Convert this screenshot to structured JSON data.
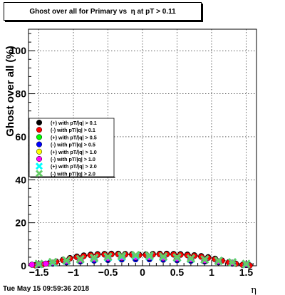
{
  "chart_data": {
    "type": "scatter",
    "title": "Ghost over all for Primary vs  η at pT > 0.11",
    "xlabel": "η",
    "ylabel": "Ghost over all (%)",
    "xlim": [
      -1.65,
      1.65
    ],
    "ylim": [
      0,
      110
    ],
    "x_ticks": [
      -1.5,
      -1,
      -0.5,
      0,
      0.5,
      1,
      1.5
    ],
    "x_tick_labels": [
      "−1.5",
      "−1",
      "−0.5",
      "0",
      "0.5",
      "1",
      "1.5"
    ],
    "y_ticks": [
      0,
      20,
      40,
      60,
      80,
      100
    ],
    "y_tick_labels": [
      "0",
      "20",
      "40",
      "60",
      "80",
      "100"
    ],
    "grid": true,
    "legend_position": "middle-left",
    "series": [
      {
        "name": "(+) with pT/|q| > 0.1",
        "color": "#000000",
        "marker": "circle",
        "x": [
          -1.55,
          -1.45,
          -1.35,
          -1.25,
          -1.15,
          -1.05,
          -0.95,
          -0.85,
          -0.75,
          -0.65,
          -0.55,
          -0.45,
          -0.35,
          -0.25,
          -0.15,
          -0.05,
          0.05,
          0.15,
          0.25,
          0.35,
          0.45,
          0.55,
          0.65,
          0.75,
          0.85,
          0.95,
          1.05,
          1.15,
          1.25,
          1.35,
          1.45,
          1.55
        ],
        "values": [
          0.3,
          0.6,
          1.2,
          2.0,
          2.8,
          3.6,
          4.3,
          4.8,
          5.2,
          5.4,
          5.5,
          5.6,
          5.6,
          5.5,
          5.4,
          5.2,
          5.3,
          5.5,
          5.6,
          5.6,
          5.5,
          5.4,
          5.2,
          4.9,
          4.5,
          4.0,
          3.3,
          2.5,
          1.7,
          1.0,
          0.5,
          0.2
        ]
      },
      {
        "name": "(-) with pT/|q| > 0.1",
        "color": "#ff0000",
        "marker": "circle",
        "x": [
          -1.55,
          -1.45,
          -1.35,
          -1.25,
          -1.15,
          -1.05,
          -0.95,
          -0.85,
          -0.75,
          -0.65,
          -0.55,
          -0.45,
          -0.35,
          -0.25,
          -0.15,
          -0.05,
          0.05,
          0.15,
          0.25,
          0.35,
          0.45,
          0.55,
          0.65,
          0.75,
          0.85,
          0.95,
          1.05,
          1.15,
          1.25,
          1.35,
          1.45,
          1.55
        ],
        "values": [
          0.2,
          0.5,
          1.0,
          1.8,
          2.6,
          3.4,
          4.0,
          4.5,
          4.9,
          5.1,
          5.2,
          5.3,
          5.3,
          5.2,
          5.1,
          4.9,
          5.0,
          5.2,
          5.3,
          5.3,
          5.2,
          5.1,
          4.9,
          4.6,
          4.2,
          3.7,
          3.0,
          2.3,
          1.5,
          0.9,
          0.4,
          0.1
        ]
      },
      {
        "name": "(+) with pT/|q| > 0.5",
        "color": "#00ff00",
        "marker": "circle",
        "x": [
          -1.5,
          -1.3,
          -1.1,
          -0.9,
          -0.7,
          -0.5,
          -0.3,
          -0.1,
          0.1,
          0.3,
          0.5,
          0.7,
          0.9,
          1.1,
          1.3,
          1.5
        ],
        "values": [
          0.5,
          1.2,
          1.8,
          2.2,
          2.6,
          2.9,
          3.1,
          3.3,
          3.2,
          3.0,
          2.8,
          2.5,
          2.2,
          1.8,
          1.2,
          0.5
        ]
      },
      {
        "name": "(-) with pT/|q| > 0.5",
        "color": "#0000ff",
        "marker": "circle",
        "x": [
          -1.5,
          -1.3,
          -1.1,
          -0.9,
          -0.7,
          -0.5,
          -0.3,
          -0.1,
          0.1,
          0.3,
          0.5,
          0.7,
          0.9,
          1.1,
          1.3,
          1.5
        ],
        "values": [
          0.4,
          1.0,
          1.6,
          2.0,
          2.4,
          2.7,
          2.9,
          3.0,
          3.0,
          2.8,
          2.6,
          2.3,
          2.0,
          1.6,
          1.0,
          0.4
        ]
      },
      {
        "name": "(+) with pT/|q| > 1.0",
        "color": "#ffff00",
        "marker": "circle",
        "x": [
          -1.5,
          -1.3,
          -1.1,
          -0.9,
          -0.7,
          -0.5,
          -0.3,
          -0.1,
          0.1,
          0.3,
          0.5,
          0.7,
          0.9,
          1.1,
          1.3,
          1.5
        ],
        "values": [
          0.6,
          1.3,
          2.0,
          2.5,
          3.0,
          3.4,
          3.6,
          3.8,
          3.7,
          3.5,
          3.2,
          2.8,
          2.4,
          1.9,
          1.3,
          0.6
        ]
      },
      {
        "name": "(-) with pT/|q| > 1.0",
        "color": "#ff00ff",
        "marker": "circle",
        "x": [
          -1.6,
          -1.5,
          -1.4,
          -1.3,
          -1.1,
          -0.9,
          -0.7,
          -0.5,
          -0.3,
          -0.1,
          0.1,
          0.3,
          0.5,
          0.7,
          0.9,
          1.1,
          1.3,
          1.5
        ],
        "values": [
          0.5,
          0.8,
          1.0,
          1.4,
          2.1,
          2.6,
          3.1,
          3.5,
          3.7,
          3.9,
          3.8,
          3.6,
          3.3,
          2.9,
          2.5,
          2.0,
          1.4,
          0.7
        ]
      },
      {
        "name": "(+) with pT/|q| > 2.0",
        "color": "#00ffff",
        "marker": "cross",
        "x": [
          -1.5,
          -1.3,
          -1.1,
          -0.9,
          -0.7,
          -0.5,
          -0.3,
          -0.1,
          0.1,
          0.3,
          0.5,
          0.7,
          0.9,
          1.1,
          1.3,
          1.5
        ],
        "values": [
          0.8,
          1.5,
          2.4,
          3.0,
          3.5,
          4.0,
          4.3,
          4.6,
          4.4,
          4.1,
          3.8,
          3.3,
          2.9,
          2.3,
          1.6,
          0.8
        ]
      },
      {
        "name": "(-) with pT/|q| > 2.0",
        "color": "#66cc66",
        "marker": "cross",
        "x": [
          -1.5,
          -1.3,
          -1.1,
          -0.9,
          -0.7,
          -0.5,
          -0.3,
          -0.1,
          0.1,
          0.3,
          0.5,
          0.7,
          0.9,
          1.1,
          1.3,
          1.5
        ],
        "values": [
          0.9,
          1.7,
          2.5,
          3.1,
          3.7,
          4.2,
          4.6,
          5.0,
          4.7,
          4.3,
          3.9,
          3.4,
          2.9,
          2.3,
          1.6,
          0.9
        ]
      }
    ]
  },
  "footer": {
    "date": "Tue May 15 09:59:36 2018"
  }
}
